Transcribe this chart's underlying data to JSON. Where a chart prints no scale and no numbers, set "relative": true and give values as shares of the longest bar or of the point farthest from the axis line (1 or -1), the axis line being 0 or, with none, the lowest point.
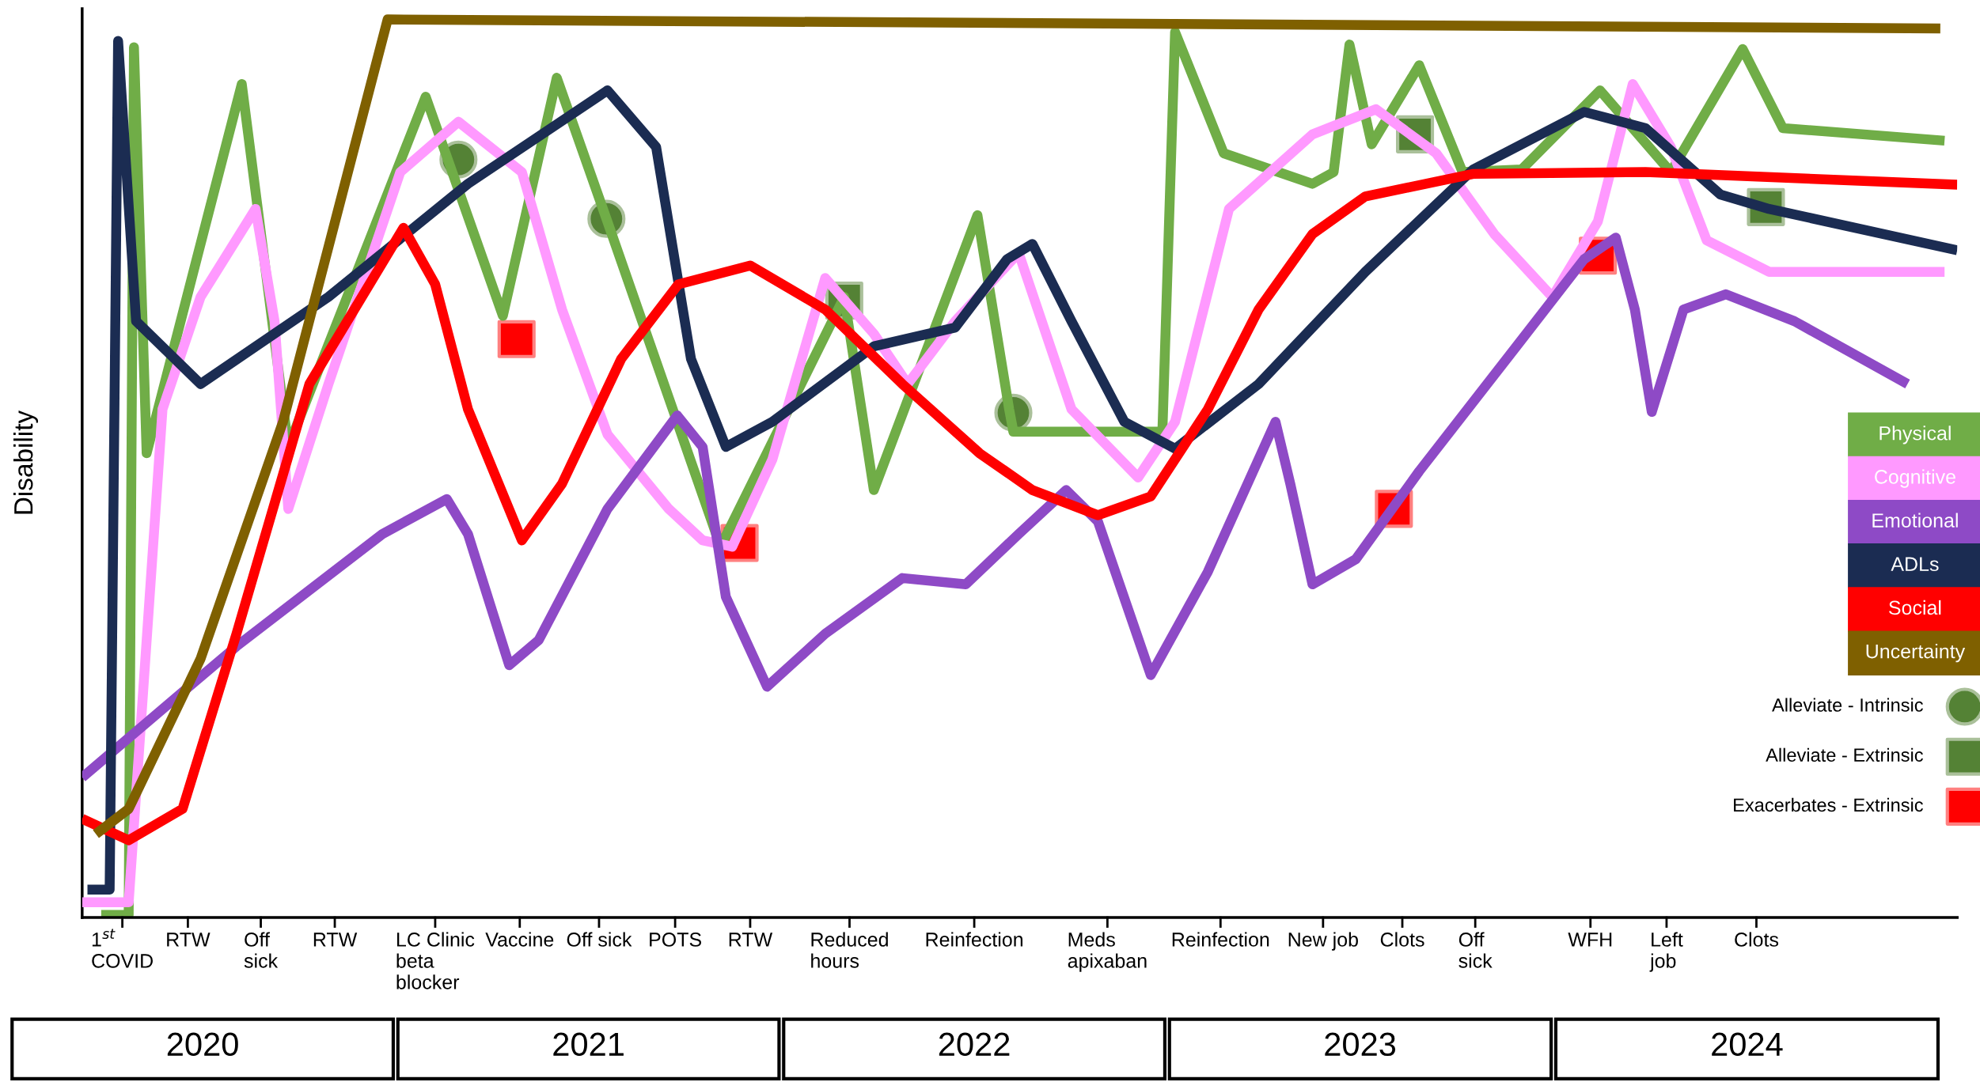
{
  "chart_data": {
    "type": "line",
    "relative": true,
    "ylabel": "Disability",
    "legend": "right",
    "grid": false,
    "xlim": [
      "2020-03-09",
      "2025-01-16"
    ],
    "ref_lines": [
      {
        "axis": "x",
        "value": "2020-04-16",
        "label": "1$^{st}$\nCOVID"
      },
      {
        "axis": "x",
        "value": "2020-06-17",
        "label": "RTW"
      },
      {
        "axis": "x",
        "value": "2020-08-25",
        "label": "Off\nsick"
      },
      {
        "axis": "x",
        "value": "2020-11-03",
        "label": "RTW"
      },
      {
        "axis": "x",
        "value": "2021-02-06",
        "label": "LC Clinic\nbeta\nblocker"
      },
      {
        "axis": "x",
        "value": "2021-04-27",
        "label": "Vaccine"
      },
      {
        "axis": "x",
        "value": "2021-07-11",
        "label": "Off sick"
      },
      {
        "axis": "x",
        "value": "2021-09-21",
        "label": "POTS"
      },
      {
        "axis": "x",
        "value": "2021-12-01",
        "label": "RTW"
      },
      {
        "axis": "x",
        "value": "2022-03-05",
        "label": "Reduced\nhours"
      },
      {
        "axis": "x",
        "value": "2022-07-01",
        "label": "Reinfection"
      },
      {
        "axis": "x",
        "value": "2022-11-04",
        "label": "Meds\napixaban"
      },
      {
        "axis": "x",
        "value": "2023-02-19",
        "label": "Reinfection"
      },
      {
        "axis": "x",
        "value": "2023-05-27",
        "label": "New job"
      },
      {
        "axis": "x",
        "value": "2023-08-10",
        "label": "Clots"
      },
      {
        "axis": "x",
        "value": "2023-10-18",
        "label": "Off\nsick"
      },
      {
        "axis": "x",
        "value": "2024-02-04",
        "label": "WFH"
      },
      {
        "axis": "x",
        "value": "2024-04-16",
        "label": "Left\njob"
      },
      {
        "axis": "x",
        "value": "2024-07-10",
        "label": "Clots"
      }
    ],
    "xticks": [
      {
        "value": "2020-07-01",
        "label": "2020"
      },
      {
        "value": "2021-07-01",
        "label": "2021"
      },
      {
        "value": "2022-07-01",
        "label": "2022"
      },
      {
        "value": "2023-07-01",
        "label": "2023"
      },
      {
        "value": "2024-07-01",
        "label": "2024"
      }
    ],
    "series": [
      {
        "name": "Physical",
        "color": "#70ad47",
        "x": [
          "2020-03-27",
          "2020-04-22",
          "2020-04-27",
          "2020-05-09",
          "2020-08-07",
          "2020-09-20",
          "2021-01-28",
          "2021-04-11",
          "2021-06-01",
          "2021-07-18",
          "2021-11-03",
          "2022-02-28",
          "2022-03-28",
          "2022-07-04",
          "2022-08-03",
          "2022-08-07",
          "2022-12-26",
          "2023-01-07",
          "2023-02-22",
          "2023-05-17",
          "2023-06-06",
          "2023-06-21",
          "2023-07-12",
          "2023-08-26",
          "2023-10-06",
          "2023-12-01",
          "2024-02-13",
          "2024-04-20",
          "2024-06-27",
          "2024-08-04",
          "2025-01-04"
        ],
        "values": [
          0.003,
          0.003,
          0.969,
          0.517,
          0.928,
          0.524,
          0.914,
          0.67,
          0.935,
          0.778,
          0.413,
          0.691,
          0.476,
          0.782,
          0.566,
          0.541,
          0.541,
          0.986,
          0.851,
          0.817,
          0.83,
          0.972,
          0.861,
          0.949,
          0.83,
          0.833,
          0.921,
          0.83,
          0.967,
          0.879,
          0.865
        ]
      },
      {
        "name": "Cognitive",
        "color": "#ff99ff",
        "x": [
          "2020-03-09",
          "2020-04-22",
          "2020-05-24",
          "2020-06-29",
          "2020-08-20",
          "2020-09-07",
          "2020-09-20",
          "2020-10-28",
          "2021-01-04",
          "2021-02-28",
          "2021-04-29",
          "2021-06-06",
          "2021-07-19",
          "2021-09-15",
          "2021-10-17",
          "2021-11-14",
          "2021-12-22",
          "2022-02-10",
          "2022-03-28",
          "2022-04-29",
          "2022-06-13",
          "2022-08-12",
          "2022-10-01",
          "2022-12-03",
          "2023-01-07",
          "2023-02-27",
          "2023-05-17",
          "2023-07-16",
          "2023-09-11",
          "2023-11-05",
          "2023-12-30",
          "2024-02-11",
          "2024-03-15",
          "2024-04-20",
          "2024-05-24",
          "2024-07-22",
          "2025-01-04"
        ],
        "values": [
          0.017,
          0.017,
          0.566,
          0.691,
          0.789,
          0.664,
          0.455,
          0.594,
          0.83,
          0.886,
          0.83,
          0.677,
          0.538,
          0.455,
          0.42,
          0.413,
          0.51,
          0.712,
          0.65,
          0.594,
          0.664,
          0.74,
          0.566,
          0.49,
          0.552,
          0.789,
          0.872,
          0.9,
          0.851,
          0.761,
          0.691,
          0.775,
          0.928,
          0.858,
          0.754,
          0.719,
          0.719
        ]
      },
      {
        "name": "Emotional",
        "color": "#8e4ac6",
        "x": [
          "2020-03-09",
          "2020-08-02",
          "2020-12-18",
          "2021-02-17",
          "2021-03-09",
          "2021-04-17",
          "2021-05-15",
          "2021-07-19",
          "2021-09-23",
          "2021-10-17",
          "2021-11-08",
          "2021-12-17",
          "2022-02-10",
          "2022-04-24",
          "2022-06-23",
          "2022-08-12",
          "2022-09-26",
          "2022-10-26",
          "2022-12-15",
          "2023-02-07",
          "2023-04-12",
          "2023-04-26",
          "2023-05-17",
          "2023-06-27",
          "2023-08-26",
          "2023-11-26",
          "2024-01-29",
          "2024-02-28",
          "2024-03-17",
          "2024-04-02",
          "2024-05-02",
          "2024-06-11",
          "2024-08-15",
          "2024-11-30"
        ],
        "values": [
          0.156,
          0.302,
          0.427,
          0.466,
          0.427,
          0.281,
          0.309,
          0.455,
          0.559,
          0.524,
          0.357,
          0.257,
          0.316,
          0.378,
          0.371,
          0.427,
          0.476,
          0.441,
          0.27,
          0.385,
          0.552,
          0.483,
          0.371,
          0.399,
          0.497,
          0.636,
          0.733,
          0.757,
          0.677,
          0.563,
          0.677,
          0.694,
          0.664,
          0.594
        ]
      },
      {
        "name": "ADLs",
        "color": "#1b2c52",
        "x": [
          "2020-03-14",
          "2020-04-04",
          "2020-04-12",
          "2020-04-29",
          "2020-06-29",
          "2020-10-28",
          "2021-03-09",
          "2021-07-19",
          "2021-09-03",
          "2021-10-06",
          "2021-11-08",
          "2021-12-22",
          "2022-03-28",
          "2022-06-13",
          "2022-08-01",
          "2022-08-25",
          "2022-10-01",
          "2022-11-20",
          "2023-01-07",
          "2023-03-27",
          "2023-07-06",
          "2023-10-16",
          "2024-01-29",
          "2024-03-27",
          "2024-06-06",
          "2024-07-22",
          "2025-01-16"
        ],
        "values": [
          0.031,
          0.031,
          0.976,
          0.664,
          0.594,
          0.691,
          0.817,
          0.921,
          0.858,
          0.622,
          0.524,
          0.552,
          0.636,
          0.657,
          0.733,
          0.75,
          0.664,
          0.552,
          0.522,
          0.594,
          0.719,
          0.833,
          0.897,
          0.879,
          0.805,
          0.789,
          0.743
        ]
      },
      {
        "name": "Social",
        "color": "#ff0000",
        "x": [
          "2020-03-09",
          "2020-04-22",
          "2020-06-12",
          "2020-08-02",
          "2020-10-10",
          "2021-01-07",
          "2021-02-06",
          "2021-03-09",
          "2021-04-29",
          "2021-06-06",
          "2021-08-01",
          "2021-09-24",
          "2021-12-01",
          "2022-02-10",
          "2022-04-24",
          "2022-07-06",
          "2022-08-25",
          "2022-10-26",
          "2022-12-15",
          "2023-02-07",
          "2023-03-27",
          "2023-05-17",
          "2023-07-06",
          "2023-10-16",
          "2024-03-27",
          "2025-01-16"
        ],
        "values": [
          0.11,
          0.086,
          0.121,
          0.316,
          0.594,
          0.768,
          0.705,
          0.566,
          0.42,
          0.483,
          0.622,
          0.705,
          0.726,
          0.677,
          0.594,
          0.517,
          0.476,
          0.448,
          0.469,
          0.566,
          0.677,
          0.761,
          0.803,
          0.828,
          0.83,
          0.816
        ]
      },
      {
        "name": "Uncertainty",
        "color": "#7f6000",
        "x": [
          "2020-03-22",
          "2020-04-22",
          "2020-06-29",
          "2020-09-15",
          "2020-12-23",
          "2024-12-31"
        ],
        "values": [
          0.093,
          0.121,
          0.288,
          0.552,
          1.0,
          0.99
        ]
      },
      {
        "name": "Alleviate - Intrinsic",
        "type": "scatter",
        "marker": "circle",
        "color": "#548235",
        "x": [
          "2021-02-28",
          "2021-07-18",
          "2022-08-07"
        ],
        "values": [
          0.844,
          0.778,
          0.562
        ]
      },
      {
        "name": "Alleviate - Extrinsic",
        "type": "scatter",
        "marker": "square",
        "color": "#548235",
        "x": [
          "2022-02-28",
          "2023-08-22",
          "2024-07-19"
        ],
        "values": [
          0.687,
          0.872,
          0.791
        ]
      },
      {
        "name": "Exacerbates - Extrinsic",
        "type": "scatter",
        "marker": "square",
        "color": "#ff0000",
        "x": [
          "2021-04-24",
          "2021-11-21",
          "2023-08-02",
          "2024-02-11"
        ],
        "values": [
          0.644,
          0.417,
          0.455,
          0.737
        ]
      }
    ]
  }
}
